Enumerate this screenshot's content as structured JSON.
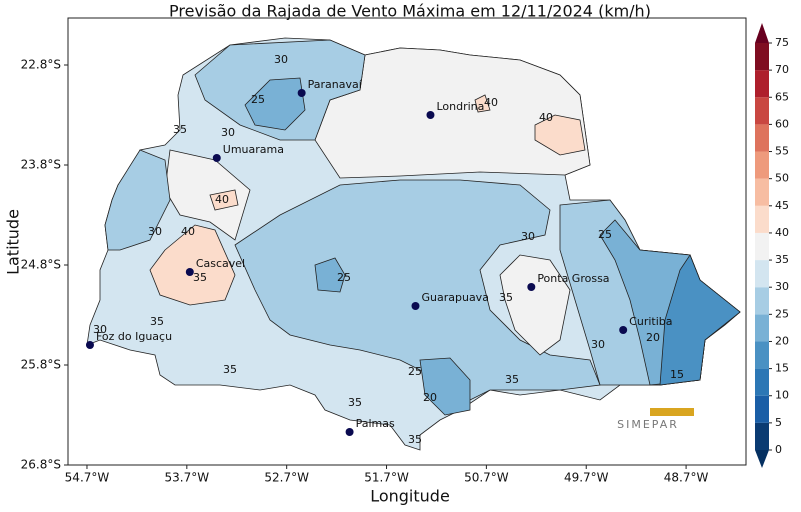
{
  "chart_data": {
    "type": "map",
    "title": "Previsão da Rajada de Vento Máxima em 12/11/2024 (km/h)",
    "x_label": "Longitude",
    "y_label": "Latitude",
    "xlim": [
      -54.89,
      -48.1
    ],
    "ylim": [
      -26.8,
      -22.33
    ],
    "xticks": [
      {
        "value": -54.7,
        "label": "54.7°W"
      },
      {
        "value": -53.7,
        "label": "53.7°W"
      },
      {
        "value": -52.7,
        "label": "52.7°W"
      },
      {
        "value": -51.7,
        "label": "51.7°W"
      },
      {
        "value": -50.7,
        "label": "50.7°W"
      },
      {
        "value": -49.7,
        "label": "49.7°W"
      },
      {
        "value": -48.7,
        "label": "48.7°W"
      }
    ],
    "yticks": [
      {
        "value": -22.8,
        "label": "22.8°S"
      },
      {
        "value": -23.8,
        "label": "23.8°S"
      },
      {
        "value": -24.8,
        "label": "24.8°S"
      },
      {
        "value": -25.8,
        "label": "25.8°S"
      },
      {
        "value": -26.8,
        "label": "26.8°S"
      }
    ],
    "cities": [
      {
        "name": "Paranavaí",
        "lon": -52.55,
        "lat": -23.08
      },
      {
        "name": "Londrina",
        "lon": -51.26,
        "lat": -23.3
      },
      {
        "name": "Umuarama",
        "lon": -53.4,
        "lat": -23.73
      },
      {
        "name": "Cascavel",
        "lon": -53.67,
        "lat": -24.87
      },
      {
        "name": "Foz do Iguaçu",
        "lon": -54.67,
        "lat": -25.6
      },
      {
        "name": "Guarapuava",
        "lon": -51.41,
        "lat": -25.21
      },
      {
        "name": "Ponta Grossa",
        "lon": -50.25,
        "lat": -25.02
      },
      {
        "name": "Curitiba",
        "lon": -49.33,
        "lat": -25.45
      },
      {
        "name": "Palmas",
        "lon": -52.07,
        "lat": -26.47
      }
    ],
    "contour_labels": [
      30,
      25,
      35,
      30,
      40,
      40,
      40,
      30,
      40,
      35,
      35,
      30,
      35,
      25,
      30,
      25,
      35,
      25,
      20,
      35,
      30,
      20,
      15,
      35,
      35
    ],
    "colorbar": {
      "clim": [
        0,
        75
      ],
      "ticks": [
        0,
        5,
        10,
        15,
        20,
        25,
        30,
        35,
        40,
        45,
        50,
        55,
        60,
        65,
        70,
        75
      ],
      "colors": [
        "#0a3b72",
        "#1a5ea6",
        "#2c77b5",
        "#4a91c3",
        "#79b1d5",
        "#a7cde4",
        "#d3e5f0",
        "#f2f2f2",
        "#fbdccb",
        "#f7bda2",
        "#ee9a7c",
        "#de735d",
        "#c94741",
        "#ae1f2c",
        "#7f0d21"
      ],
      "under_color": "#053061",
      "over_color": "#67001f"
    },
    "logo": "SIMEPAR"
  }
}
